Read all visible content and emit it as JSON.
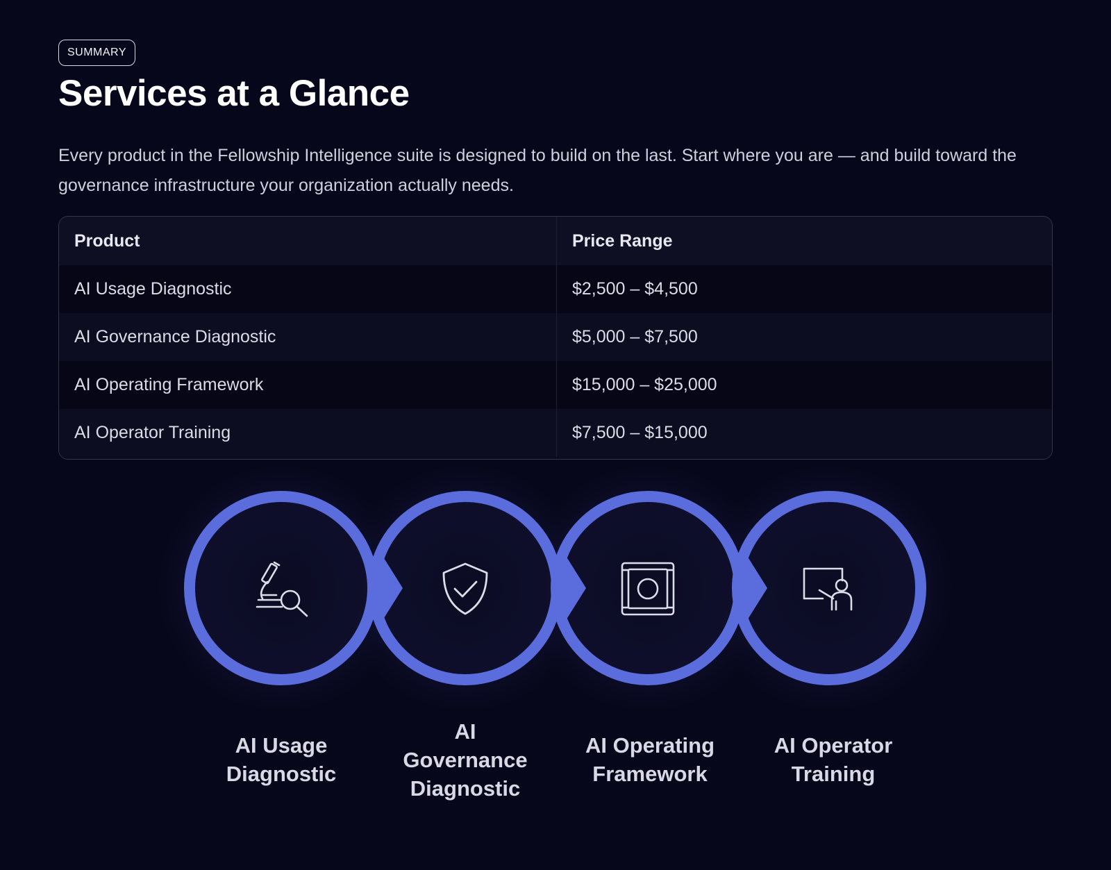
{
  "header": {
    "badge": "SUMMARY",
    "title": "Services at a Glance",
    "lede": "Every product in the Fellowship Intelligence suite is designed to build on the last. Start where you are — and build toward the governance infrastructure your organization actually needs."
  },
  "table": {
    "columns": [
      "Product",
      "Price Range"
    ],
    "rows": [
      [
        "AI Usage Diagnostic",
        "$2,500 – $4,500"
      ],
      [
        "AI Governance Diagnostic",
        "$5,000 – $7,500"
      ],
      [
        "AI Operating Framework",
        "$15,000 – $25,000"
      ],
      [
        "AI Operator Training",
        "$7,500 – $15,000"
      ]
    ]
  },
  "steps": [
    {
      "icon": "microscope-icon",
      "lines": [
        "AI Usage",
        "Diagnostic"
      ]
    },
    {
      "icon": "shield-check-icon",
      "lines": [
        "AI",
        "Governance",
        "Diagnostic"
      ]
    },
    {
      "icon": "framework-icon",
      "lines": [
        "AI Operating",
        "Framework"
      ]
    },
    {
      "icon": "presenter-icon",
      "lines": [
        "AI Operator",
        "Training"
      ]
    }
  ],
  "colors": {
    "background": "#07071b",
    "ring": "#5b6ddc",
    "text": "#e4e4ee"
  }
}
